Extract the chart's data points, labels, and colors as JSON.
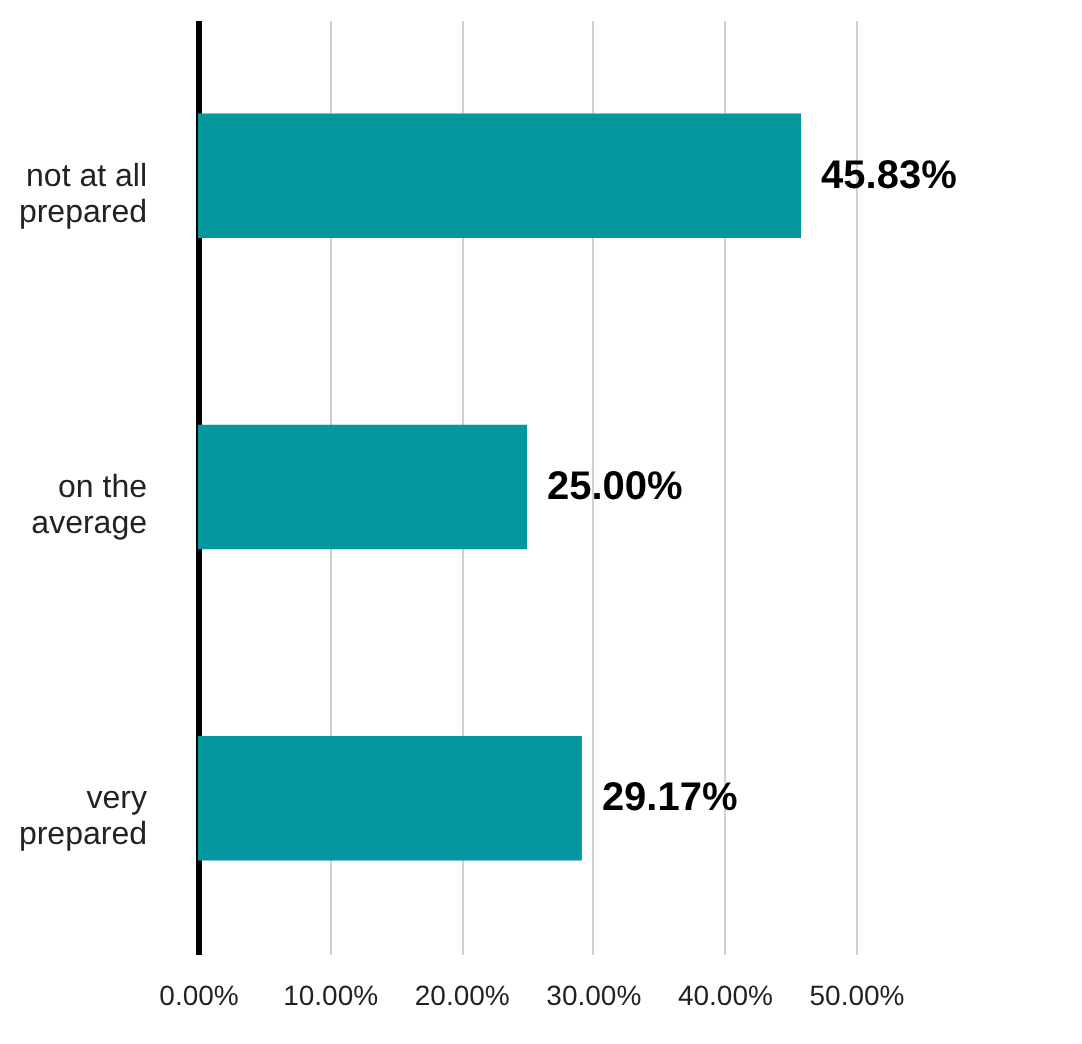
{
  "chart_data": {
    "type": "bar",
    "orientation": "horizontal",
    "categories": [
      "not at all\nprepared",
      "on the\naverage",
      "very\nprepared"
    ],
    "values": [
      45.83,
      25.0,
      29.17
    ],
    "value_labels": [
      "45.83%",
      "25.00%",
      "29.17%"
    ],
    "color": "#05979e",
    "xlim": [
      0,
      50
    ],
    "xticks": [
      {
        "value": 0,
        "label": "0.00%"
      },
      {
        "value": 10,
        "label": "10.00%"
      },
      {
        "value": 20,
        "label": "20.00%"
      },
      {
        "value": 30,
        "label": "30.00%"
      },
      {
        "value": 40,
        "label": "40.00%"
      },
      {
        "value": 50,
        "label": "50.00%"
      }
    ],
    "grid": "x"
  }
}
